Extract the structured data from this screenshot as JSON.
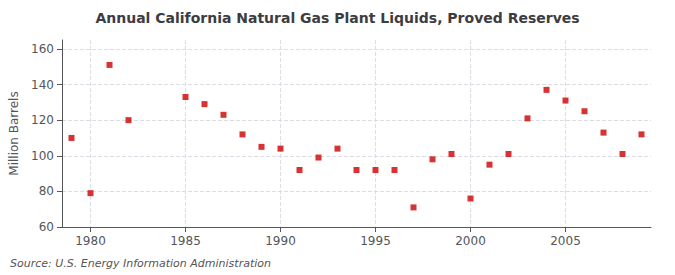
{
  "chart_data": {
    "type": "scatter",
    "title": "Annual California Natural Gas Plant Liquids, Proved Reserves",
    "ylabel": "Million Barrels",
    "annotation": "Source: U.S. Energy Information Administration",
    "x": [
      1979,
      1980,
      1981,
      1982,
      1985,
      1986,
      1987,
      1988,
      1989,
      1990,
      1991,
      1992,
      1993,
      1994,
      1995,
      1996,
      1997,
      1998,
      1999,
      2000,
      2001,
      2002,
      2003,
      2004,
      2005,
      2006,
      2007,
      2008,
      2009
    ],
    "values": [
      110,
      79,
      151,
      120,
      133,
      129,
      123,
      112,
      105,
      104,
      92,
      99,
      104,
      92,
      92,
      92,
      71,
      98,
      101,
      76,
      95,
      101,
      121,
      137,
      131,
      125,
      113,
      101,
      112
    ],
    "color": "#cc0000",
    "marker": "square",
    "xlim": [
      1978.5,
      2009.5
    ],
    "xticks": [
      1980,
      1985,
      1990,
      1995,
      2000,
      2005
    ],
    "ylim": [
      60,
      165
    ],
    "yticks": [
      60,
      80,
      100,
      120,
      140,
      160
    ],
    "grid": true
  }
}
